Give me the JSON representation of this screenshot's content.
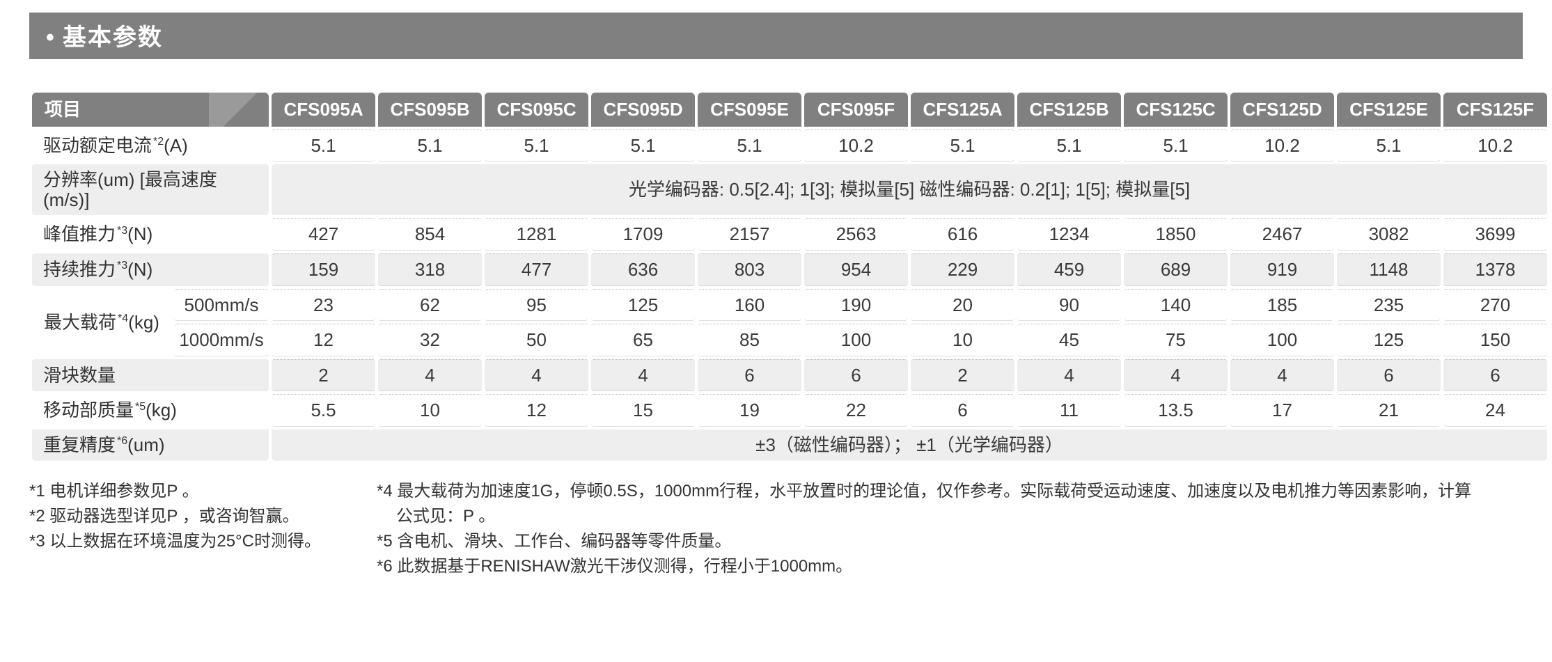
{
  "title": "基本参数",
  "headers": {
    "item": "项目",
    "models": [
      "CFS095A",
      "CFS095B",
      "CFS095C",
      "CFS095D",
      "CFS095E",
      "CFS095F",
      "CFS125A",
      "CFS125B",
      "CFS125C",
      "CFS125D",
      "CFS125E",
      "CFS125F"
    ]
  },
  "rows": {
    "rated_current": {
      "label": "驱动额定电流",
      "sup": "*2",
      "unit": "(A)",
      "values": [
        "5.1",
        "5.1",
        "5.1",
        "5.1",
        "5.1",
        "10.2",
        "5.1",
        "5.1",
        "5.1",
        "10.2",
        "5.1",
        "10.2"
      ]
    },
    "resolution": {
      "label": "分辨率(um)   [最高速度(m/s)]",
      "note": "光学编码器: 0.5[2.4];    1[3];    模拟量[5]              磁性编码器: 0.2[1];    1[5];    模拟量[5]"
    },
    "peak_force": {
      "label": "峰值推力",
      "sup": "*3",
      "unit": "(N)",
      "values": [
        "427",
        "854",
        "1281",
        "1709",
        "2157",
        "2563",
        "616",
        "1234",
        "1850",
        "2467",
        "3082",
        "3699"
      ]
    },
    "cont_force": {
      "label": "持续推力",
      "sup": "*3",
      "unit": "(N)",
      "values": [
        "159",
        "318",
        "477",
        "636",
        "803",
        "954",
        "229",
        "459",
        "689",
        "919",
        "1148",
        "1378"
      ]
    },
    "max_load": {
      "label": "最大载荷",
      "sup": "*4",
      "unit": "(kg)",
      "sub1": {
        "label": "500mm/s",
        "values": [
          "23",
          "62",
          "95",
          "125",
          "160",
          "190",
          "20",
          "90",
          "140",
          "185",
          "235",
          "270"
        ]
      },
      "sub2": {
        "label": "1000mm/s",
        "values": [
          "12",
          "32",
          "50",
          "65",
          "85",
          "100",
          "10",
          "45",
          "75",
          "100",
          "125",
          "150"
        ]
      }
    },
    "slider_count": {
      "label": "滑块数量",
      "values": [
        "2",
        "4",
        "4",
        "4",
        "6",
        "6",
        "2",
        "4",
        "4",
        "4",
        "6",
        "6"
      ]
    },
    "moving_mass": {
      "label": "移动部质量",
      "sup": "*5",
      "unit": "(kg)",
      "values": [
        "5.5",
        "10",
        "12",
        "15",
        "19",
        "22",
        "6",
        "11",
        "13.5",
        "17",
        "21",
        "24"
      ]
    },
    "repeatability": {
      "label": "重复精度",
      "sup": "*6",
      "unit": "(um)",
      "note": "±3（磁性编码器）；    ±1（光学编码器）"
    }
  },
  "footnotes": {
    "left": [
      "*1 电机详细参数见P    。",
      "*2 驱动器选型详见P    ，或咨询智赢。",
      "*3 以上数据在环境温度为25°C时测得。"
    ],
    "right": [
      "*4 最大载荷为加速度1G，停顿0.5S，1000mm行程，水平放置时的理论值，仅作参考。实际载荷受运动速度、加速度以及电机推力等因素影响，计算",
      "      公式见：P    。",
      "*5 含电机、滑块、工作台、编码器等零件质量。",
      "*6 此数据基于RENISHAW激光干涉仪测得，行程小于1000mm。"
    ]
  },
  "colors": {
    "header_bg": "#808080",
    "header_fg": "#ffffff",
    "row_gray": "#eeeeee",
    "row_white": "#ffffff",
    "text": "#333333",
    "dotted": "#bdbdbd"
  }
}
